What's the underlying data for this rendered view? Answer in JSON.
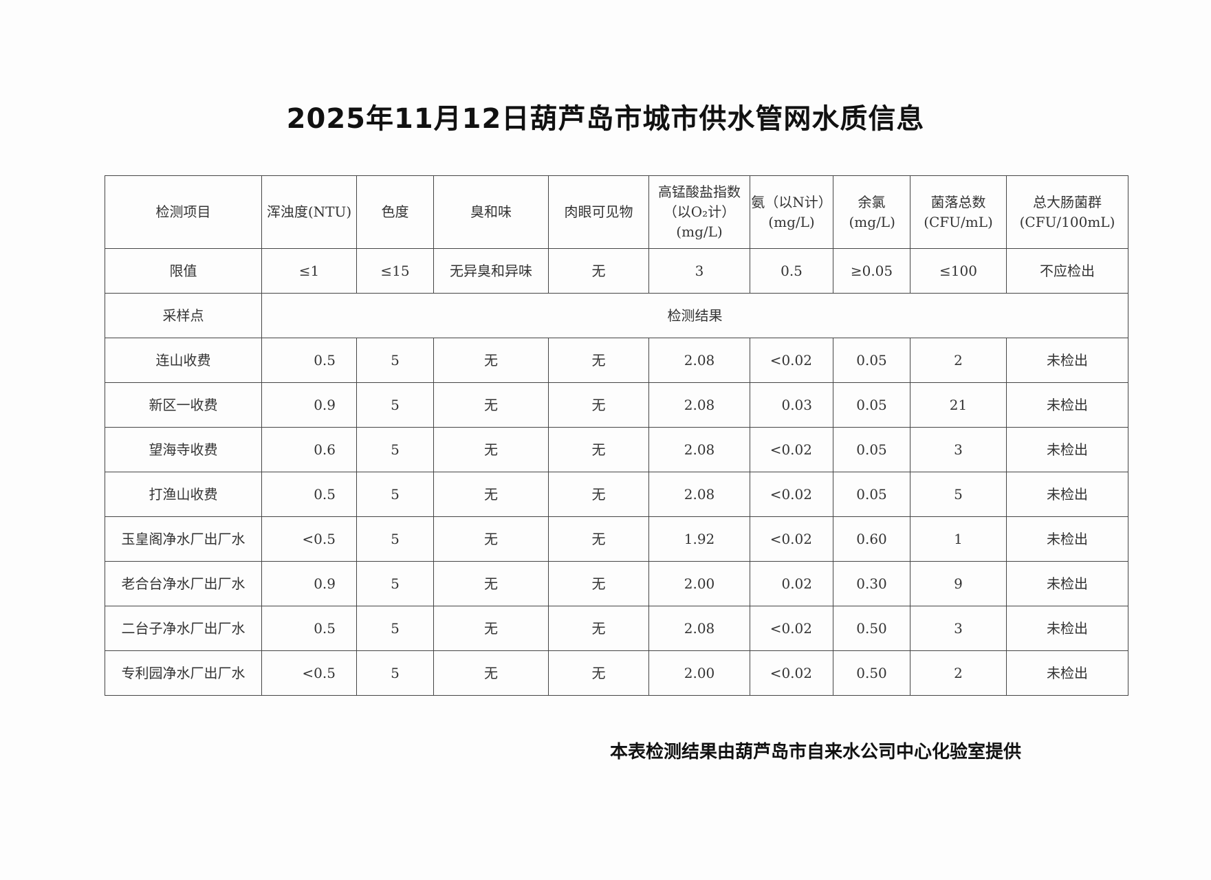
{
  "title": "2025年11月12日葫芦岛市城市供水管网水质信息",
  "table": {
    "headers": [
      "检测项目",
      "浑浊度(NTU)",
      "色度",
      "臭和味",
      "肉眼可见物",
      "高锰酸盐指数（以O₂计）(mg/L)",
      "氨（以N计）(mg/L)",
      "余氯(mg/L)",
      "菌落总数(CFU/mL)",
      "总大肠菌群(CFU/100mL)"
    ],
    "header_lines": [
      [
        "检测项目"
      ],
      [
        "浑浊度(NTU)"
      ],
      [
        "色度"
      ],
      [
        "臭和味"
      ],
      [
        "肉眼可见物"
      ],
      [
        "高锰酸盐指数",
        "（以O₂计）",
        "(mg/L)"
      ],
      [
        "氨（以N计）",
        "(mg/L)"
      ],
      [
        "余氯",
        "(mg/L)"
      ],
      [
        "菌落总数",
        "(CFU/mL)"
      ],
      [
        "总大肠菌群",
        "(CFU/100mL)"
      ]
    ],
    "limits": [
      "限值",
      "≤1",
      "≤15",
      "无异臭和异味",
      "无",
      "3",
      "0.5",
      "≥0.05",
      "≤100",
      "不应检出"
    ],
    "section_label": "采样点",
    "section_title": "检测结果",
    "rows": [
      [
        "连山收费",
        "0.5",
        "5",
        "无",
        "无",
        "2.08",
        "<0.02",
        "0.05",
        "2",
        "未检出"
      ],
      [
        "新区一收费",
        "0.9",
        "5",
        "无",
        "无",
        "2.08",
        "0.03",
        "0.05",
        "21",
        "未检出"
      ],
      [
        "望海寺收费",
        "0.6",
        "5",
        "无",
        "无",
        "2.08",
        "<0.02",
        "0.05",
        "3",
        "未检出"
      ],
      [
        "打渔山收费",
        "0.5",
        "5",
        "无",
        "无",
        "2.08",
        "<0.02",
        "0.05",
        "5",
        "未检出"
      ],
      [
        "玉皇阁净水厂出厂水",
        "<0.5",
        "5",
        "无",
        "无",
        "1.92",
        "<0.02",
        "0.60",
        "1",
        "未检出"
      ],
      [
        "老合台净水厂出厂水",
        "0.9",
        "5",
        "无",
        "无",
        "2.00",
        "0.02",
        "0.30",
        "9",
        "未检出"
      ],
      [
        "二台子净水厂出厂水",
        "0.5",
        "5",
        "无",
        "无",
        "2.08",
        "<0.02",
        "0.50",
        "3",
        "未检出"
      ],
      [
        "专利园净水厂出厂水",
        "<0.5",
        "5",
        "无",
        "无",
        "2.00",
        "<0.02",
        "0.50",
        "2",
        "未检出"
      ]
    ]
  },
  "footer": "本表检测结果由葫芦岛市自来水公司中心化验室提供"
}
